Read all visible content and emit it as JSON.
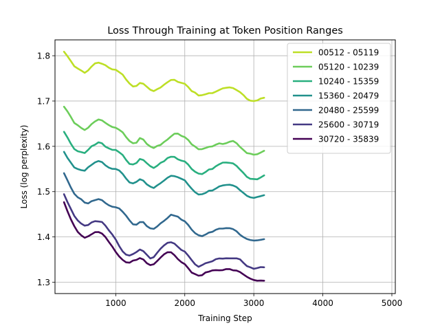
{
  "chart_data": {
    "type": "line",
    "title": "Loss Through Training at Token Position Ranges",
    "xlabel": "Training Step",
    "ylabel": "Loss (log perplexity)",
    "xlim": [
      120,
      5050
    ],
    "ylim": [
      1.275,
      1.835
    ],
    "x_ticks": [
      1000,
      2000,
      3000,
      4000,
      5000
    ],
    "y_ticks": [
      1.3,
      1.4,
      1.5,
      1.6,
      1.7,
      1.8
    ],
    "x_tick_labels": [
      "1000",
      "2000",
      "3000",
      "4000",
      "5000"
    ],
    "y_tick_labels": [
      "1.3",
      "1.4",
      "1.5",
      "1.6",
      "1.7",
      "1.8"
    ],
    "grid": true,
    "legend_position": "top-right",
    "x": [
      250,
      300,
      350,
      400,
      450,
      500,
      550,
      600,
      650,
      700,
      750,
      800,
      850,
      900,
      950,
      1000,
      1050,
      1100,
      1150,
      1200,
      1250,
      1300,
      1350,
      1400,
      1450,
      1500,
      1550,
      1600,
      1650,
      1700,
      1750,
      1800,
      1850,
      1900,
      1950,
      2000,
      2050,
      2100,
      2150,
      2200,
      2250,
      2300,
      2350,
      2400,
      2450,
      2500,
      2550,
      2600,
      2650,
      2700,
      2750,
      2800,
      2850,
      2900,
      2950,
      3000,
      3050,
      3100,
      3150
    ],
    "series": [
      {
        "name": "00512 - 05119",
        "color": "#bddf26",
        "values": [
          1.808,
          1.8,
          1.788,
          1.777,
          1.772,
          1.767,
          1.763,
          1.768,
          1.776,
          1.782,
          1.784,
          1.783,
          1.778,
          1.773,
          1.77,
          1.768,
          1.764,
          1.758,
          1.748,
          1.738,
          1.732,
          1.733,
          1.74,
          1.739,
          1.732,
          1.725,
          1.723,
          1.727,
          1.73,
          1.735,
          1.741,
          1.747,
          1.747,
          1.743,
          1.74,
          1.737,
          1.73,
          1.722,
          1.718,
          1.712,
          1.712,
          1.715,
          1.718,
          1.717,
          1.72,
          1.725,
          1.728,
          1.73,
          1.731,
          1.729,
          1.725,
          1.719,
          1.713,
          1.705,
          1.7,
          1.7,
          1.702,
          1.706,
          1.708
        ]
      },
      {
        "name": "05120 - 10239",
        "color": "#6ccd5a",
        "values": [
          1.687,
          1.677,
          1.665,
          1.652,
          1.646,
          1.64,
          1.636,
          1.641,
          1.649,
          1.656,
          1.659,
          1.657,
          1.652,
          1.646,
          1.643,
          1.641,
          1.637,
          1.63,
          1.62,
          1.611,
          1.606,
          1.609,
          1.618,
          1.614,
          1.606,
          1.599,
          1.597,
          1.6,
          1.604,
          1.61,
          1.615,
          1.622,
          1.628,
          1.628,
          1.624,
          1.62,
          1.613,
          1.605,
          1.6,
          1.593,
          1.593,
          1.596,
          1.6,
          1.6,
          1.603,
          1.606,
          1.606,
          1.607,
          1.609,
          1.611,
          1.607,
          1.599,
          1.592,
          1.586,
          1.583,
          1.582,
          1.583,
          1.586,
          1.59
        ]
      },
      {
        "name": "10240 - 15359",
        "color": "#29af7f",
        "values": [
          1.633,
          1.62,
          1.606,
          1.593,
          1.589,
          1.587,
          1.585,
          1.592,
          1.6,
          1.604,
          1.608,
          1.606,
          1.6,
          1.595,
          1.592,
          1.591,
          1.587,
          1.58,
          1.57,
          1.561,
          1.56,
          1.564,
          1.573,
          1.57,
          1.562,
          1.556,
          1.553,
          1.557,
          1.563,
          1.568,
          1.574,
          1.578,
          1.577,
          1.572,
          1.568,
          1.566,
          1.559,
          1.55,
          1.544,
          1.54,
          1.539,
          1.544,
          1.549,
          1.55,
          1.555,
          1.561,
          1.563,
          1.564,
          1.563,
          1.562,
          1.557,
          1.549,
          1.542,
          1.533,
          1.528,
          1.527,
          1.527,
          1.532,
          1.535
        ]
      },
      {
        "name": "15360 - 20479",
        "color": "#21918c",
        "values": [
          1.588,
          1.575,
          1.563,
          1.553,
          1.549,
          1.547,
          1.547,
          1.553,
          1.56,
          1.565,
          1.567,
          1.565,
          1.559,
          1.554,
          1.551,
          1.55,
          1.547,
          1.54,
          1.53,
          1.521,
          1.518,
          1.521,
          1.528,
          1.525,
          1.517,
          1.51,
          1.509,
          1.513,
          1.519,
          1.524,
          1.53,
          1.535,
          1.535,
          1.532,
          1.528,
          1.524,
          1.516,
          1.506,
          1.499,
          1.494,
          1.494,
          1.498,
          1.503,
          1.503,
          1.507,
          1.512,
          1.514,
          1.515,
          1.515,
          1.514,
          1.51,
          1.503,
          1.497,
          1.49,
          1.487,
          1.487,
          1.488,
          1.49,
          1.491
        ]
      },
      {
        "name": "20480 - 25599",
        "color": "#31688e",
        "values": [
          1.54,
          1.525,
          1.51,
          1.496,
          1.488,
          1.482,
          1.476,
          1.475,
          1.479,
          1.481,
          1.483,
          1.481,
          1.476,
          1.47,
          1.467,
          1.466,
          1.463,
          1.456,
          1.446,
          1.436,
          1.428,
          1.426,
          1.433,
          1.432,
          1.424,
          1.418,
          1.418,
          1.423,
          1.43,
          1.436,
          1.442,
          1.448,
          1.448,
          1.444,
          1.438,
          1.434,
          1.427,
          1.416,
          1.409,
          1.403,
          1.402,
          1.405,
          1.41,
          1.412,
          1.415,
          1.418,
          1.418,
          1.42,
          1.42,
          1.418,
          1.412,
          1.406,
          1.4,
          1.396,
          1.393,
          1.393,
          1.392,
          1.393,
          1.394
        ]
      },
      {
        "name": "25600 - 30719",
        "color": "#443983",
        "values": [
          1.495,
          1.478,
          1.461,
          1.447,
          1.437,
          1.429,
          1.424,
          1.426,
          1.431,
          1.434,
          1.434,
          1.432,
          1.425,
          1.415,
          1.405,
          1.394,
          1.38,
          1.369,
          1.36,
          1.358,
          1.362,
          1.366,
          1.372,
          1.368,
          1.36,
          1.353,
          1.356,
          1.364,
          1.373,
          1.381,
          1.386,
          1.388,
          1.385,
          1.378,
          1.372,
          1.367,
          1.358,
          1.348,
          1.34,
          1.335,
          1.337,
          1.342,
          1.345,
          1.347,
          1.35,
          1.352,
          1.353,
          1.353,
          1.352,
          1.352,
          1.353,
          1.35,
          1.343,
          1.336,
          1.333,
          1.33,
          1.331,
          1.333,
          1.334
        ]
      },
      {
        "name": "30720 - 35839",
        "color": "#440154",
        "values": [
          1.476,
          1.458,
          1.44,
          1.423,
          1.412,
          1.404,
          1.399,
          1.401,
          1.406,
          1.41,
          1.41,
          1.407,
          1.399,
          1.389,
          1.378,
          1.367,
          1.356,
          1.349,
          1.343,
          1.343,
          1.347,
          1.35,
          1.354,
          1.35,
          1.343,
          1.337,
          1.339,
          1.346,
          1.355,
          1.362,
          1.366,
          1.366,
          1.36,
          1.352,
          1.345,
          1.339,
          1.33,
          1.322,
          1.317,
          1.315,
          1.316,
          1.321,
          1.324,
          1.325,
          1.326,
          1.327,
          1.327,
          1.328,
          1.329,
          1.327,
          1.325,
          1.322,
          1.317,
          1.311,
          1.308,
          1.305,
          1.304,
          1.304,
          1.303
        ]
      }
    ]
  }
}
